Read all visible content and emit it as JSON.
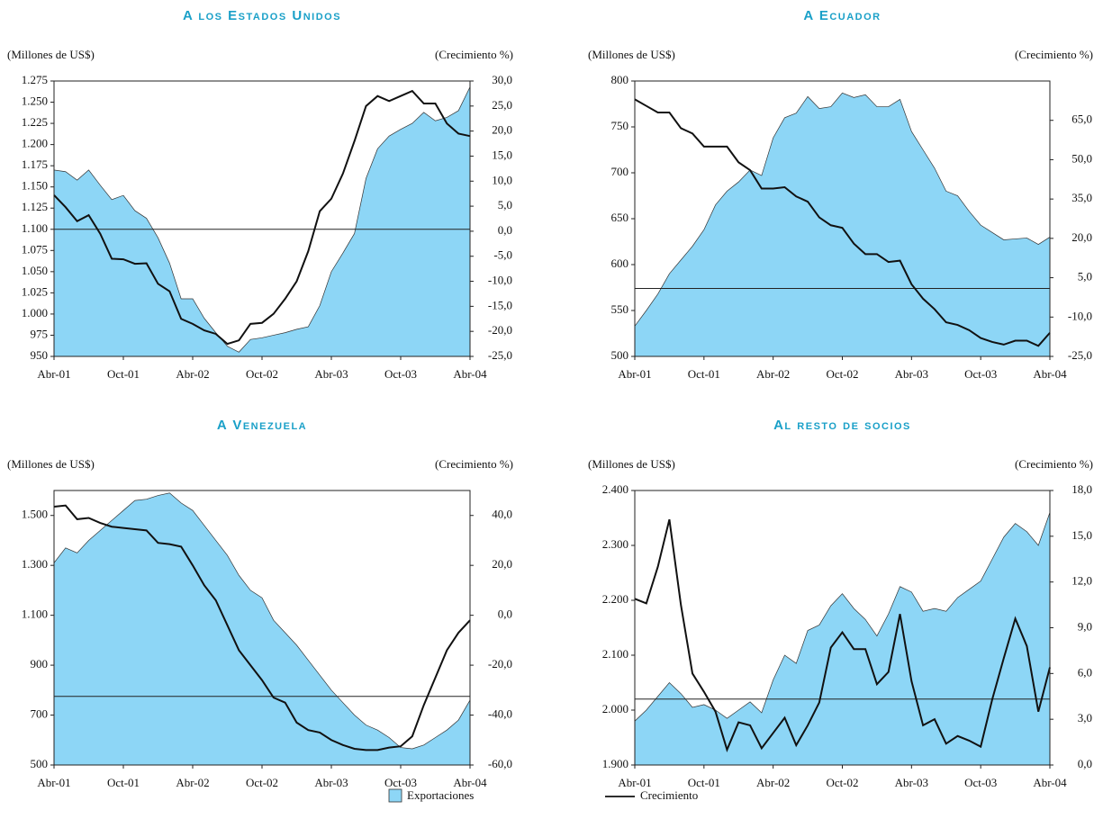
{
  "chart_data": [
    {
      "type": "combo",
      "title": "A los Estados Unidos",
      "y_label": "(Millones de US$)",
      "y2_label": "(Crecimiento %)",
      "categories": [
        "Abr-01",
        null,
        null,
        null,
        null,
        null,
        "Oct-01",
        null,
        null,
        null,
        null,
        null,
        "Abr-02",
        null,
        null,
        null,
        null,
        null,
        "Oct-02",
        null,
        null,
        null,
        null,
        null,
        "Abr-03",
        null,
        null,
        null,
        null,
        null,
        "Oct-03",
        null,
        null,
        null,
        null,
        null,
        "Abr-04"
      ],
      "ylim": [
        950,
        1275
      ],
      "yticks": [
        950,
        975,
        {
          "value": 1000,
          "label": "1.000"
        },
        {
          "value": 1025,
          "label": "1.025"
        },
        {
          "value": 1050,
          "label": "1.050"
        },
        {
          "value": 1075,
          "label": "1.075"
        },
        {
          "value": 1100,
          "label": "1.100"
        },
        {
          "value": 1125,
          "label": "1.125"
        },
        {
          "value": 1150,
          "label": "1.150"
        },
        {
          "value": 1175,
          "label": "1.175"
        },
        {
          "value": 1200,
          "label": "1.200"
        },
        {
          "value": 1225,
          "label": "1.225"
        },
        {
          "value": 1250,
          "label": "1.250"
        },
        {
          "value": 1275,
          "label": "1.275"
        }
      ],
      "y2lim": [
        -25,
        30
      ],
      "y2ticks": [
        {
          "value": -25,
          "label": "-25,0"
        },
        {
          "value": -20,
          "label": "-20,0"
        },
        {
          "value": -15,
          "label": "-15,0"
        },
        {
          "value": -10,
          "label": "-10,0"
        },
        {
          "value": -5,
          "label": "-5,0"
        },
        {
          "value": 0,
          "label": "0,0"
        },
        {
          "value": 5,
          "label": "5,0"
        },
        {
          "value": 10,
          "label": "10,0"
        },
        {
          "value": 15,
          "label": "15,0"
        },
        {
          "value": 20,
          "label": "20,0"
        },
        {
          "value": 25,
          "label": "25,0"
        },
        {
          "value": 30,
          "label": "30,0"
        }
      ],
      "hline": 1100,
      "series": [
        {
          "name": "Exportaciones",
          "type": "area",
          "color": "#8dd6f6",
          "values": [
            1170,
            1168,
            1158,
            1170,
            1152,
            1135,
            1140,
            1122,
            1113,
            1090,
            1060,
            1018,
            1018,
            995,
            978,
            962,
            955,
            970,
            972,
            975,
            978,
            982,
            985,
            1010,
            1050,
            1072,
            1095,
            1160,
            1195,
            1210,
            1218,
            1225,
            1238,
            1228,
            1232,
            1240,
            1268
          ]
        },
        {
          "name": "Crecimiento",
          "type": "line",
          "axis": "y2",
          "color": "#111111",
          "values": [
            7.2,
            4.8,
            2.0,
            3.2,
            -0.5,
            -5.5,
            -5.6,
            -6.5,
            -6.4,
            -10.5,
            -12,
            -17.5,
            -18.5,
            -19.8,
            -20.5,
            -22.5,
            -21.8,
            -18.5,
            -18.3,
            -16.5,
            -13.5,
            -10,
            -4,
            4,
            6.5,
            11.5,
            18,
            25,
            27,
            26,
            27,
            28,
            25.5,
            25.5,
            21.5,
            19.5,
            19
          ]
        }
      ]
    },
    {
      "type": "combo",
      "title": "A Ecuador",
      "y_label": "(Millones de US$)",
      "y2_label": "(Crecimiento %)",
      "categories": [
        "Abr-01",
        null,
        null,
        null,
        null,
        null,
        "Oct-01",
        null,
        null,
        null,
        null,
        null,
        "Abr-02",
        null,
        null,
        null,
        null,
        null,
        "Oct-02",
        null,
        null,
        null,
        null,
        null,
        "Abr-03",
        null,
        null,
        null,
        null,
        null,
        "Oct-03",
        null,
        null,
        null,
        null,
        null,
        "Abr-04"
      ],
      "ylim": [
        500,
        800
      ],
      "yticks": [
        500,
        550,
        600,
        650,
        700,
        750,
        800
      ],
      "y2lim": [
        -25,
        80
      ],
      "y2ticks": [
        {
          "value": -25,
          "label": "-25,0"
        },
        {
          "value": -10,
          "label": "-10,0"
        },
        {
          "value": 5,
          "label": "5,0"
        },
        {
          "value": 20,
          "label": "20,0"
        },
        {
          "value": 35,
          "label": "35,0"
        },
        {
          "value": 50,
          "label": "50,0"
        },
        {
          "value": 65,
          "label": "65,0"
        }
      ],
      "hline": 574,
      "series": [
        {
          "name": "Exportaciones",
          "type": "area",
          "color": "#8dd6f6",
          "values": [
            533,
            550,
            568,
            590,
            605,
            620,
            638,
            665,
            680,
            690,
            703,
            697,
            738,
            760,
            765,
            783,
            770,
            772,
            787,
            782,
            785,
            772,
            772,
            780,
            745,
            725,
            705,
            680,
            675,
            658,
            643,
            635,
            627,
            628,
            629,
            622,
            630
          ]
        },
        {
          "name": "Crecimiento",
          "type": "line",
          "axis": "y2",
          "color": "#111111",
          "values": [
            73,
            70.5,
            68,
            68,
            62,
            60,
            55,
            55,
            55,
            49,
            46,
            39,
            39,
            39.5,
            36,
            34,
            28,
            25,
            24,
            18,
            14,
            14,
            11,
            11.5,
            2.5,
            -3,
            -7,
            -12,
            -13,
            -15,
            -18,
            -19.5,
            -20.5,
            -19,
            -19,
            -21,
            -16
          ]
        }
      ]
    },
    {
      "type": "combo",
      "title": "A Venezuela",
      "y_label": "(Millones de US$)",
      "y2_label": "(Crecimiento %)",
      "categories": [
        "Abr-01",
        null,
        null,
        null,
        null,
        null,
        "Oct-01",
        null,
        null,
        null,
        null,
        null,
        "Abr-02",
        null,
        null,
        null,
        null,
        null,
        "Oct-02",
        null,
        null,
        null,
        null,
        null,
        "Abr-03",
        null,
        null,
        null,
        null,
        null,
        "Oct-03",
        null,
        null,
        null,
        null,
        null,
        "Abr-04"
      ],
      "ylim": [
        500,
        1600
      ],
      "yticks": [
        500,
        700,
        900,
        {
          "value": 1100,
          "label": "1.100"
        },
        {
          "value": 1300,
          "label": "1.300"
        },
        {
          "value": 1500,
          "label": "1.500"
        }
      ],
      "y2lim": [
        -60,
        50
      ],
      "y2ticks": [
        {
          "value": -60,
          "label": "-60,0"
        },
        {
          "value": -40,
          "label": "-40,0"
        },
        {
          "value": -20,
          "label": "-20,0"
        },
        {
          "value": 0,
          "label": "0,0"
        },
        {
          "value": 20,
          "label": "20,0"
        },
        {
          "value": 40,
          "label": "40,0"
        }
      ],
      "hline": 775,
      "series": [
        {
          "name": "Exportaciones",
          "type": "area",
          "color": "#8dd6f6",
          "values": [
            1310,
            1370,
            1350,
            1400,
            1440,
            1480,
            1520,
            1560,
            1565,
            1580,
            1590,
            1550,
            1520,
            1460,
            1400,
            1340,
            1260,
            1200,
            1170,
            1080,
            1030,
            980,
            920,
            860,
            800,
            750,
            700,
            660,
            640,
            610,
            570,
            565,
            580,
            610,
            640,
            680,
            760
          ]
        },
        {
          "name": "Crecimiento",
          "type": "line",
          "axis": "y2",
          "color": "#111111",
          "values": [
            43.5,
            44,
            38.5,
            39,
            37,
            35.5,
            35,
            34.5,
            34,
            29,
            28.5,
            27.5,
            20,
            12,
            6,
            -4,
            -14,
            -20,
            -26,
            -33,
            -35,
            -43,
            -46,
            -47,
            -50,
            -52,
            -53.5,
            -54,
            -54,
            -53,
            -52.5,
            -48.5,
            -36,
            -25,
            -14,
            -7,
            -2
          ]
        }
      ]
    },
    {
      "type": "combo",
      "title": "Al resto de socios",
      "y_label": "(Millones de US$)",
      "y2_label": "(Crecimiento %)",
      "categories": [
        "Abr-01",
        null,
        null,
        null,
        null,
        null,
        "Oct-01",
        null,
        null,
        null,
        null,
        null,
        "Abr-02",
        null,
        null,
        null,
        null,
        null,
        "Oct-02",
        null,
        null,
        null,
        null,
        null,
        "Abr-03",
        null,
        null,
        null,
        null,
        null,
        "Oct-03",
        null,
        null,
        null,
        null,
        null,
        "Abr-04"
      ],
      "ylim": [
        1900,
        2400
      ],
      "yticks": [
        {
          "value": 1900,
          "label": "1.900"
        },
        {
          "value": 2000,
          "label": "2.000"
        },
        {
          "value": 2100,
          "label": "2.100"
        },
        {
          "value": 2200,
          "label": "2.200"
        },
        {
          "value": 2300,
          "label": "2.300"
        },
        {
          "value": 2400,
          "label": "2.400"
        }
      ],
      "y2lim": [
        0,
        18
      ],
      "y2ticks": [
        {
          "value": 0,
          "label": "0,0"
        },
        {
          "value": 3,
          "label": "3,0"
        },
        {
          "value": 6,
          "label": "6,0"
        },
        {
          "value": 9,
          "label": "9,0"
        },
        {
          "value": 12,
          "label": "12,0"
        },
        {
          "value": 15,
          "label": "15,0"
        },
        {
          "value": 18,
          "label": "18,0"
        }
      ],
      "hline": 2020,
      "series": [
        {
          "name": "Exportaciones",
          "type": "area",
          "color": "#8dd6f6",
          "values": [
            1980,
            2000,
            2025,
            2050,
            2030,
            2005,
            2010,
            2000,
            1985,
            2000,
            2015,
            1995,
            2055,
            2100,
            2085,
            2145,
            2155,
            2190,
            2212,
            2185,
            2165,
            2135,
            2175,
            2225,
            2215,
            2180,
            2185,
            2180,
            2205,
            2220,
            2235,
            2275,
            2315,
            2340,
            2325,
            2300,
            2360
          ]
        },
        {
          "name": "Crecimiento",
          "type": "line",
          "axis": "y2",
          "color": "#111111",
          "values": [
            10.9,
            10.6,
            13,
            16.1,
            10.5,
            6,
            4.8,
            3.5,
            1,
            2.8,
            2.6,
            1.1,
            2.1,
            3.1,
            1.3,
            2.6,
            4.1,
            7.7,
            8.7,
            7.6,
            7.6,
            5.3,
            6.1,
            9.9,
            5.5,
            2.6,
            3,
            1.4,
            1.9,
            1.6,
            1.2,
            4.3,
            7,
            9.6,
            7.8,
            3.5,
            6.4
          ]
        }
      ]
    }
  ]
}
